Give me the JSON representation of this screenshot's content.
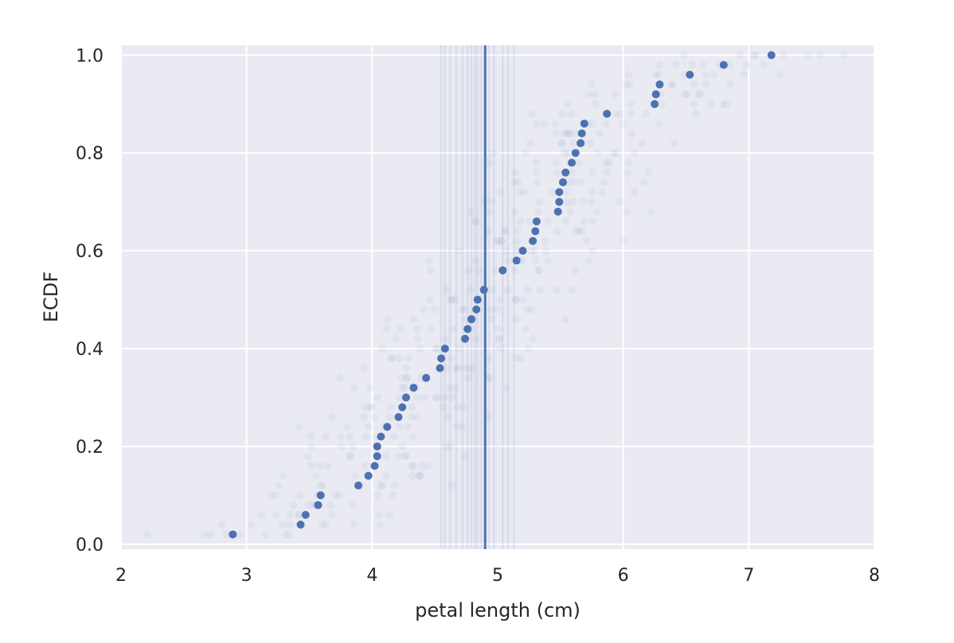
{
  "chart_data": {
    "type": "scatter",
    "title": "",
    "xlabel": "petal length (cm)",
    "ylabel": "ECDF",
    "xlim": [
      2,
      8
    ],
    "ylim": [
      -0.01,
      1.02
    ],
    "xticks": [
      2,
      3,
      4,
      5,
      6,
      7,
      8
    ],
    "xtick_labels": [
      "2",
      "3",
      "4",
      "5",
      "6",
      "7",
      "8"
    ],
    "yticks": [
      0.0,
      0.2,
      0.4,
      0.6,
      0.8,
      1.0
    ],
    "ytick_labels": [
      "0.0",
      "0.2",
      "0.4",
      "0.6",
      "0.8",
      "1.0"
    ],
    "grid": true,
    "style": "seaborn darkgrid",
    "colors": {
      "background": "#eaeaf2",
      "grid": "#ffffff",
      "marker": "#4c72b0",
      "faint_marker": "#4c72b0"
    },
    "series": [
      {
        "kind": "ecdf-points",
        "x": [
          2.89,
          3.43,
          3.47,
          3.57,
          3.59,
          3.89,
          3.97,
          4.02,
          4.04,
          4.04,
          4.07,
          4.12,
          4.21,
          4.24,
          4.27,
          4.33,
          4.43,
          4.54,
          4.55,
          4.58,
          4.74,
          4.76,
          4.79,
          4.83,
          4.84,
          4.89,
          5.04,
          5.15,
          5.2,
          5.28,
          5.3,
          5.31,
          5.48,
          5.49,
          5.49,
          5.52,
          5.54,
          5.59,
          5.62,
          5.66,
          5.67,
          5.69,
          5.87,
          6.25,
          6.26,
          6.29,
          6.53,
          6.8,
          7.18
        ],
        "y": [
          0.02,
          0.04,
          0.06,
          0.08,
          0.1,
          0.12,
          0.14,
          0.16,
          0.18,
          0.2,
          0.22,
          0.24,
          0.26,
          0.28,
          0.3,
          0.32,
          0.34,
          0.36,
          0.38,
          0.4,
          0.42,
          0.44,
          0.46,
          0.48,
          0.5,
          0.52,
          0.56,
          0.58,
          0.6,
          0.62,
          0.64,
          0.66,
          0.68,
          0.7,
          0.72,
          0.74,
          0.76,
          0.78,
          0.8,
          0.82,
          0.84,
          0.86,
          0.88,
          0.9,
          0.92,
          0.94,
          0.96,
          0.98,
          1.0
        ]
      },
      {
        "kind": "bootstrap-replicates",
        "count": 8,
        "x_offsets": [
          -0.45,
          -0.3,
          -0.15,
          -0.05,
          0.1,
          0.2,
          0.35,
          0.5
        ],
        "alpha": 0.06
      },
      {
        "kind": "vertical-line",
        "x": 4.9
      },
      {
        "kind": "faint-vertical-lines",
        "x": [
          4.55,
          4.58,
          4.62,
          4.67,
          4.72,
          4.76,
          4.79,
          4.82,
          4.84,
          4.87,
          4.93,
          4.97,
          5.0,
          5.04,
          5.08,
          5.13
        ]
      }
    ]
  }
}
